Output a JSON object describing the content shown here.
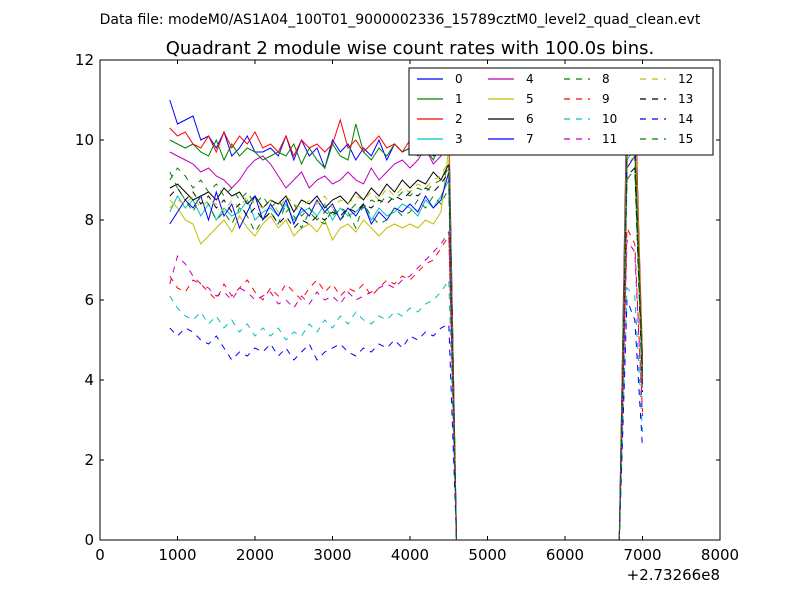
{
  "chart_data": {
    "type": "line",
    "suptitle": "Data file: modeM0/AS1A04_100T01_9000002336_15789cztM0_level2_quad_clean.evt",
    "title": "Quadrant 2 module wise count rates with 100.0s bins.",
    "xlabel": "",
    "ylabel": "",
    "x_offset_label": "+2.73266e8",
    "xlim": [
      0,
      8000
    ],
    "ylim": [
      0,
      12
    ],
    "xticks": [
      "0",
      "1000",
      "2000",
      "3000",
      "4000",
      "5000",
      "6000",
      "7000",
      "8000"
    ],
    "yticks": [
      "0",
      "2",
      "4",
      "6",
      "8",
      "10",
      "12"
    ],
    "legend_position": "top-right",
    "x": [
      900,
      1000,
      1100,
      1200,
      1300,
      1400,
      1500,
      1600,
      1700,
      1800,
      1900,
      2000,
      2100,
      2200,
      2300,
      2400,
      2500,
      2600,
      2700,
      2800,
      2900,
      3000,
      3100,
      3200,
      3300,
      3400,
      3500,
      3600,
      3700,
      3800,
      3900,
      4000,
      4100,
      4200,
      4300,
      4400,
      4500,
      4600,
      4700,
      4800,
      4900,
      5000,
      5100,
      5200,
      5300,
      5400,
      5500,
      5600,
      5700,
      5800,
      5900,
      6000,
      6100,
      6200,
      6300,
      6400,
      6500,
      6600,
      6700,
      6800,
      6900,
      7000
    ],
    "series": [
      {
        "name": "0",
        "color": "#0000ff",
        "dash": "solid",
        "values": [
          11.0,
          10.4,
          10.5,
          10.6,
          10.0,
          10.1,
          9.8,
          10.2,
          9.6,
          9.8,
          10.1,
          9.7,
          9.7,
          9.8,
          9.6,
          10.1,
          9.5,
          10.0,
          9.6,
          9.8,
          9.3,
          10.0,
          9.7,
          9.9,
          9.5,
          9.8,
          9.6,
          10.0,
          9.5,
          9.9,
          9.7,
          9.8,
          10.6,
          10.5,
          9.6,
          9.7,
          10.5,
          0.0,
          0.0,
          0.0,
          0.0,
          0.0,
          0.0,
          0.0,
          0.0,
          0.0,
          0.0,
          0.0,
          0.0,
          0.0,
          0.0,
          0.0,
          0.0,
          0.0,
          0.0,
          0.0,
          0.0,
          0.0,
          0.0,
          11.3,
          11.5,
          4.0
        ]
      },
      {
        "name": "1",
        "color": "#008000",
        "dash": "solid",
        "values": [
          10.0,
          9.9,
          9.8,
          9.9,
          9.7,
          9.6,
          10.0,
          9.5,
          9.9,
          9.6,
          9.8,
          9.7,
          9.5,
          9.6,
          9.7,
          9.6,
          9.9,
          9.4,
          9.8,
          9.5,
          9.3,
          9.9,
          9.6,
          9.5,
          10.4,
          9.7,
          9.5,
          9.8,
          9.6,
          9.9,
          9.7,
          9.8,
          9.6,
          9.8,
          9.5,
          9.9,
          10.1,
          0.0,
          0.0,
          0.0,
          0.0,
          0.0,
          0.0,
          0.0,
          0.0,
          0.0,
          0.0,
          0.0,
          0.0,
          0.0,
          0.0,
          0.0,
          0.0,
          0.0,
          0.0,
          0.0,
          0.0,
          0.0,
          0.0,
          10.2,
          10.5,
          4.5
        ]
      },
      {
        "name": "2",
        "color": "#ff0000",
        "dash": "solid",
        "values": [
          10.3,
          10.1,
          10.2,
          9.9,
          9.8,
          10.1,
          9.7,
          10.2,
          9.8,
          10.1,
          9.9,
          10.2,
          9.8,
          9.9,
          9.7,
          10.1,
          9.6,
          10.0,
          9.8,
          9.9,
          9.7,
          9.9,
          10.5,
          9.8,
          10.0,
          9.7,
          9.9,
          10.1,
          9.8,
          9.9,
          9.7,
          10.0,
          10.1,
          9.8,
          10.6,
          9.9,
          10.3,
          0.0,
          0.0,
          0.0,
          0.0,
          0.0,
          0.0,
          0.0,
          0.0,
          0.0,
          0.0,
          0.0,
          0.0,
          0.0,
          0.0,
          0.0,
          0.0,
          0.0,
          0.0,
          0.0,
          0.0,
          0.0,
          0.0,
          10.8,
          11.1,
          4.6
        ]
      },
      {
        "name": "3",
        "color": "#00bfbf",
        "dash": "solid",
        "values": [
          8.2,
          8.6,
          8.3,
          8.5,
          8.1,
          8.4,
          8.0,
          8.3,
          8.1,
          8.2,
          8.5,
          8.0,
          8.2,
          8.3,
          8.1,
          8.4,
          8.0,
          8.2,
          8.3,
          8.1,
          8.4,
          8.0,
          8.3,
          8.1,
          8.2,
          8.4,
          8.0,
          8.3,
          8.1,
          8.2,
          8.4,
          8.3,
          8.1,
          8.5,
          8.3,
          8.6,
          9.0,
          0.0,
          0.0,
          0.0,
          0.0,
          0.0,
          0.0,
          0.0,
          0.0,
          0.0,
          0.0,
          0.0,
          0.0,
          0.0,
          0.0,
          0.0,
          0.0,
          0.0,
          0.0,
          0.0,
          0.0,
          0.0,
          0.0,
          9.5,
          9.8,
          3.8
        ]
      },
      {
        "name": "4",
        "color": "#bf00bf",
        "dash": "solid",
        "values": [
          9.7,
          9.6,
          9.5,
          9.4,
          9.2,
          9.3,
          9.1,
          9.0,
          8.8,
          9.0,
          9.3,
          9.5,
          9.6,
          9.4,
          9.1,
          8.8,
          9.0,
          9.2,
          8.8,
          9.0,
          9.1,
          8.9,
          9.0,
          9.2,
          9.0,
          8.9,
          9.3,
          9.0,
          9.2,
          9.4,
          9.5,
          9.3,
          9.5,
          9.8,
          9.4,
          9.6,
          10.0,
          0.0,
          0.0,
          0.0,
          0.0,
          0.0,
          0.0,
          0.0,
          0.0,
          0.0,
          0.0,
          0.0,
          0.0,
          0.0,
          0.0,
          0.0,
          0.0,
          0.0,
          0.0,
          0.0,
          0.0,
          0.0,
          0.0,
          10.0,
          10.4,
          4.4
        ]
      },
      {
        "name": "5",
        "color": "#bfbf00",
        "dash": "solid",
        "values": [
          8.5,
          8.3,
          8.0,
          7.9,
          7.4,
          7.6,
          7.8,
          8.0,
          7.7,
          8.1,
          7.8,
          7.6,
          7.9,
          8.1,
          7.8,
          8.0,
          7.6,
          7.8,
          7.9,
          7.7,
          8.0,
          7.5,
          7.8,
          7.9,
          7.7,
          8.0,
          7.8,
          7.6,
          7.8,
          7.9,
          7.8,
          7.9,
          7.8,
          8.0,
          7.9,
          8.2,
          9.8,
          0.0,
          0.0,
          0.0,
          0.0,
          0.0,
          0.0,
          0.0,
          0.0,
          0.0,
          0.0,
          0.0,
          0.0,
          0.0,
          0.0,
          0.0,
          0.0,
          0.0,
          0.0,
          0.0,
          0.0,
          0.0,
          0.0,
          10.3,
          10.7,
          4.3
        ]
      },
      {
        "name": "6",
        "color": "#000000",
        "dash": "solid",
        "values": [
          8.8,
          8.9,
          8.7,
          8.5,
          8.6,
          8.7,
          8.5,
          8.8,
          8.6,
          8.7,
          8.4,
          8.6,
          8.3,
          8.5,
          8.4,
          8.6,
          8.2,
          8.5,
          8.4,
          8.6,
          8.3,
          8.5,
          8.6,
          8.4,
          8.7,
          8.5,
          8.8,
          8.6,
          8.9,
          8.7,
          9.0,
          8.8,
          9.0,
          8.9,
          9.2,
          9.0,
          9.4,
          0.0,
          0.0,
          0.0,
          0.0,
          0.0,
          0.0,
          0.0,
          0.0,
          0.0,
          0.0,
          0.0,
          0.0,
          0.0,
          0.0,
          0.0,
          0.0,
          0.0,
          0.0,
          0.0,
          0.0,
          0.0,
          0.0,
          9.6,
          9.9,
          4.2
        ]
      },
      {
        "name": "7",
        "color": "#0000ff",
        "dash": "solid",
        "values": [
          7.9,
          8.2,
          8.5,
          8.3,
          8.6,
          8.0,
          8.7,
          8.1,
          8.4,
          7.8,
          8.2,
          8.6,
          8.0,
          8.4,
          8.1,
          8.5,
          7.9,
          8.3,
          8.1,
          8.5,
          8.2,
          8.4,
          8.0,
          8.3,
          8.1,
          8.4,
          7.9,
          8.2,
          8.0,
          8.3,
          8.2,
          8.4,
          8.2,
          8.6,
          8.3,
          8.5,
          9.2,
          0.0,
          0.0,
          0.0,
          0.0,
          0.0,
          0.0,
          0.0,
          0.0,
          0.0,
          0.0,
          0.0,
          0.0,
          0.0,
          0.0,
          0.0,
          0.0,
          0.0,
          0.0,
          0.0,
          0.0,
          0.0,
          0.0,
          9.3,
          9.6,
          4.0
        ]
      },
      {
        "name": "8",
        "color": "#008000",
        "dash": "dashed",
        "values": [
          9.2,
          8.8,
          8.5,
          8.2,
          8.6,
          8.4,
          8.0,
          8.2,
          7.9,
          8.3,
          8.1,
          7.7,
          8.0,
          8.2,
          7.9,
          8.4,
          8.1,
          7.8,
          8.2,
          8.0,
          7.9,
          8.3,
          8.0,
          8.2,
          7.8,
          8.4,
          8.1,
          7.9,
          8.0,
          8.3,
          8.1,
          8.2,
          8.5,
          8.3,
          8.6,
          8.4,
          8.8,
          0.0,
          0.0,
          0.0,
          0.0,
          0.0,
          0.0,
          0.0,
          0.0,
          0.0,
          0.0,
          0.0,
          0.0,
          0.0,
          0.0,
          0.0,
          0.0,
          0.0,
          0.0,
          0.0,
          0.0,
          0.0,
          0.0,
          9.0,
          9.3,
          3.9
        ]
      },
      {
        "name": "9",
        "color": "#ff0000",
        "dash": "dashed",
        "values": [
          6.6,
          6.3,
          6.2,
          6.5,
          6.4,
          6.2,
          6.0,
          6.4,
          6.1,
          6.3,
          6.5,
          6.2,
          6.0,
          6.3,
          6.1,
          6.4,
          6.2,
          6.0,
          6.3,
          6.5,
          6.2,
          6.4,
          6.1,
          6.3,
          6.2,
          6.4,
          6.1,
          6.3,
          6.5,
          6.4,
          6.6,
          6.5,
          6.7,
          6.9,
          7.0,
          7.3,
          7.6,
          0.0,
          0.0,
          0.0,
          0.0,
          0.0,
          0.0,
          0.0,
          0.0,
          0.0,
          0.0,
          0.0,
          0.0,
          0.0,
          0.0,
          0.0,
          0.0,
          0.0,
          0.0,
          0.0,
          0.0,
          0.0,
          0.0,
          7.8,
          7.4,
          3.2
        ]
      },
      {
        "name": "10",
        "color": "#00bfbf",
        "dash": "dashed",
        "values": [
          6.1,
          5.8,
          5.6,
          5.5,
          5.7,
          5.4,
          5.6,
          5.3,
          5.5,
          5.2,
          5.4,
          5.1,
          5.3,
          5.1,
          5.3,
          5.0,
          5.2,
          5.1,
          5.4,
          5.2,
          5.5,
          5.3,
          5.6,
          5.4,
          5.7,
          5.5,
          5.4,
          5.6,
          5.5,
          5.7,
          5.6,
          5.8,
          5.7,
          5.9,
          6.0,
          6.2,
          6.5,
          0.0,
          0.0,
          0.0,
          0.0,
          0.0,
          0.0,
          0.0,
          0.0,
          0.0,
          0.0,
          0.0,
          0.0,
          0.0,
          0.0,
          0.0,
          0.0,
          0.0,
          0.0,
          0.0,
          0.0,
          0.0,
          0.0,
          6.3,
          6.1,
          2.7
        ]
      },
      {
        "name": "11",
        "color": "#bf00bf",
        "dash": "dashed",
        "values": [
          6.4,
          7.1,
          6.9,
          6.6,
          6.4,
          6.3,
          6.1,
          6.2,
          6.0,
          6.3,
          6.2,
          6.0,
          6.1,
          6.2,
          5.9,
          6.0,
          5.8,
          6.1,
          5.9,
          6.2,
          6.0,
          6.1,
          5.9,
          6.2,
          6.0,
          6.1,
          6.2,
          6.3,
          6.4,
          6.3,
          6.5,
          6.6,
          6.8,
          7.0,
          7.2,
          7.4,
          7.7,
          0.0,
          0.0,
          0.0,
          0.0,
          0.0,
          0.0,
          0.0,
          0.0,
          0.0,
          0.0,
          0.0,
          0.0,
          0.0,
          0.0,
          0.0,
          0.0,
          0.0,
          0.0,
          0.0,
          0.0,
          0.0,
          0.0,
          7.5,
          7.2,
          3.1
        ]
      },
      {
        "name": "12",
        "color": "#bfbf00",
        "dash": "dashed",
        "values": [
          8.3,
          8.5,
          8.4,
          8.6,
          8.3,
          8.5,
          8.4,
          8.2,
          8.5,
          8.3,
          8.6,
          8.4,
          8.3,
          8.5,
          8.2,
          8.6,
          8.4,
          8.3,
          8.5,
          8.4,
          8.6,
          8.3,
          8.5,
          8.4,
          8.6,
          8.5,
          8.7,
          8.5,
          8.8,
          8.6,
          8.8,
          8.7,
          8.9,
          8.8,
          9.0,
          9.1,
          9.5,
          0.0,
          0.0,
          0.0,
          0.0,
          0.0,
          0.0,
          0.0,
          0.0,
          0.0,
          0.0,
          0.0,
          0.0,
          0.0,
          0.0,
          0.0,
          0.0,
          0.0,
          0.0,
          0.0,
          0.0,
          0.0,
          0.0,
          9.4,
          9.6,
          3.9
        ]
      },
      {
        "name": "13",
        "color": "#000000",
        "dash": "dashed",
        "values": [
          8.6,
          8.8,
          8.5,
          8.7,
          8.4,
          8.6,
          8.3,
          8.5,
          8.2,
          8.4,
          8.1,
          8.3,
          8.0,
          8.2,
          7.9,
          8.1,
          7.8,
          8.0,
          7.9,
          8.1,
          8.0,
          8.2,
          8.1,
          8.3,
          8.2,
          8.4,
          8.3,
          8.5,
          8.4,
          8.6,
          8.5,
          8.7,
          8.6,
          8.8,
          8.7,
          8.9,
          9.2,
          0.0,
          0.0,
          0.0,
          0.0,
          0.0,
          0.0,
          0.0,
          0.0,
          0.0,
          0.0,
          0.0,
          0.0,
          0.0,
          0.0,
          0.0,
          0.0,
          0.0,
          0.0,
          0.0,
          0.0,
          0.0,
          0.0,
          9.1,
          9.3,
          3.7
        ]
      },
      {
        "name": "14",
        "color": "#0000ff",
        "dash": "dashed",
        "values": [
          5.3,
          5.1,
          5.3,
          5.2,
          5.0,
          4.9,
          5.1,
          4.8,
          4.5,
          4.7,
          4.6,
          4.8,
          4.7,
          4.9,
          4.6,
          4.8,
          4.5,
          4.7,
          4.9,
          4.5,
          4.7,
          4.8,
          4.9,
          4.7,
          4.6,
          4.8,
          4.7,
          4.9,
          4.8,
          5.0,
          4.8,
          5.1,
          5.0,
          5.2,
          5.1,
          5.3,
          5.4,
          0.0,
          0.0,
          0.0,
          0.0,
          0.0,
          0.0,
          0.0,
          0.0,
          0.0,
          0.0,
          0.0,
          0.0,
          0.0,
          0.0,
          0.0,
          0.0,
          0.0,
          0.0,
          0.0,
          0.0,
          0.0,
          0.0,
          6.0,
          5.5,
          2.3
        ]
      },
      {
        "name": "15",
        "color": "#008000",
        "dash": "dashed",
        "values": [
          9.0,
          9.3,
          9.1,
          8.8,
          9.0,
          8.7,
          8.9,
          8.6,
          8.8,
          8.5,
          8.7,
          8.4,
          8.6,
          8.3,
          8.5,
          8.2,
          8.4,
          8.1,
          8.3,
          8.0,
          8.2,
          8.1,
          8.3,
          8.2,
          8.4,
          8.3,
          8.5,
          8.4,
          8.6,
          8.5,
          8.7,
          8.6,
          8.8,
          8.7,
          8.9,
          9.0,
          9.3,
          0.0,
          0.0,
          0.0,
          0.0,
          0.0,
          0.0,
          0.0,
          0.0,
          0.0,
          0.0,
          0.0,
          0.0,
          0.0,
          0.0,
          0.0,
          0.0,
          0.0,
          0.0,
          0.0,
          0.0,
          0.0,
          0.0,
          9.6,
          9.9,
          4.1
        ]
      }
    ]
  }
}
